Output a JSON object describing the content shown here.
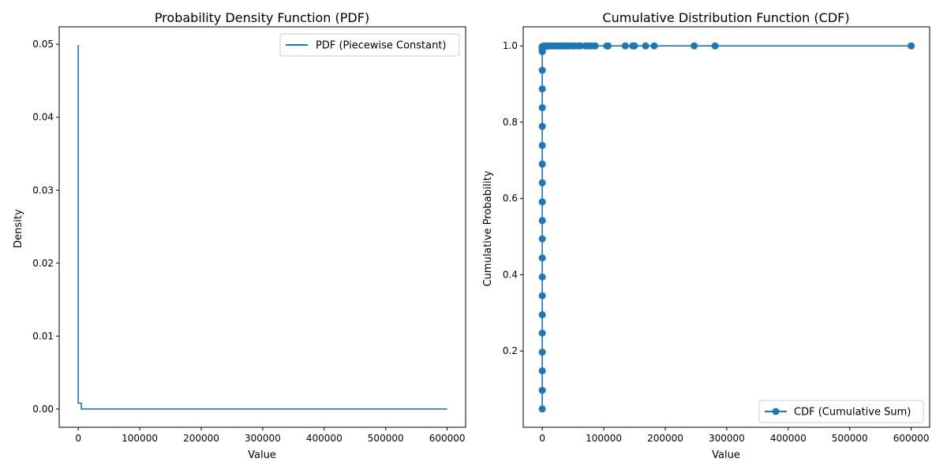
{
  "chart_data": [
    {
      "type": "line",
      "title": "Probability Density Function (PDF)",
      "xlabel": "Value",
      "ylabel": "Density",
      "xlim": [
        -31000,
        630000
      ],
      "ylim": [
        -0.0025,
        0.0524
      ],
      "xticks": [
        0,
        100000,
        200000,
        300000,
        400000,
        500000,
        600000
      ],
      "xtick_labels": [
        "0",
        "100000",
        "200000",
        "300000",
        "400000",
        "500000",
        "600000"
      ],
      "yticks": [
        0.0,
        0.01,
        0.02,
        0.03,
        0.04,
        0.05
      ],
      "ytick_labels": [
        "0.00",
        "0.01",
        "0.02",
        "0.03",
        "0.04",
        "0.05"
      ],
      "legend_position": "top-right",
      "color": "#1f77b4",
      "series": [
        {
          "name": "PDF (Piecewise Constant)",
          "drawstyle": "steps",
          "x": [
            0,
            0,
            5000,
            5000,
            600000
          ],
          "y": [
            0.0499,
            0.0008,
            0.0008,
            1e-05,
            1e-05
          ]
        }
      ]
    },
    {
      "type": "line",
      "title": "Cumulative Distribution Function (CDF)",
      "xlabel": "Value",
      "ylabel": "Cumulative Probability",
      "xlim": [
        -31000,
        630000
      ],
      "ylim": [
        0.0,
        1.05
      ],
      "xticks": [
        0,
        100000,
        200000,
        300000,
        400000,
        500000,
        600000
      ],
      "xtick_labels": [
        "0",
        "100000",
        "200000",
        "300000",
        "400000",
        "500000",
        "600000"
      ],
      "yticks": [
        0.2,
        0.4,
        0.6,
        0.8,
        1.0
      ],
      "ytick_labels": [
        "0.2",
        "0.4",
        "0.6",
        "0.8",
        "1.0"
      ],
      "legend_position": "bottom-right",
      "color": "#1f77b4",
      "series": [
        {
          "name": "CDF (Cumulative Sum)",
          "marker": "o",
          "x": [
            0,
            0,
            0,
            0,
            0,
            0,
            0,
            0,
            0,
            0,
            0,
            0,
            0,
            0,
            0,
            0,
            0,
            0,
            0,
            0,
            0,
            0,
            0,
            0,
            0,
            0,
            1000,
            2000,
            3000,
            5000,
            8000,
            10000,
            14000,
            18000,
            22000,
            26000,
            30000,
            34000,
            38000,
            42000,
            48000,
            52000,
            58000,
            62000,
            70000,
            75000,
            80000,
            86000,
            105000,
            107000,
            135000,
            147000,
            150000,
            168000,
            182000,
            247000,
            281000,
            600000
          ],
          "y": [
            0.048,
            0.097,
            0.148,
            0.197,
            0.247,
            0.295,
            0.345,
            0.394,
            0.444,
            0.494,
            0.542,
            0.591,
            0.641,
            0.69,
            0.739,
            0.789,
            0.838,
            0.887,
            0.936,
            0.985,
            0.988,
            0.99,
            0.993,
            0.995,
            0.997,
            0.998,
            0.999,
            0.9993,
            0.9995,
            0.9996,
            0.9997,
            0.99975,
            0.9998,
            0.99982,
            0.99984,
            0.99986,
            0.99987,
            0.99988,
            0.99989,
            0.9999,
            0.99991,
            0.99992,
            0.99993,
            0.99994,
            0.99995,
            0.99996,
            0.99996,
            0.99997,
            0.99997,
            0.99998,
            0.99998,
            0.99998,
            0.99999,
            0.99999,
            0.99999,
            0.99999,
            1.0,
            1.0
          ]
        }
      ]
    }
  ]
}
